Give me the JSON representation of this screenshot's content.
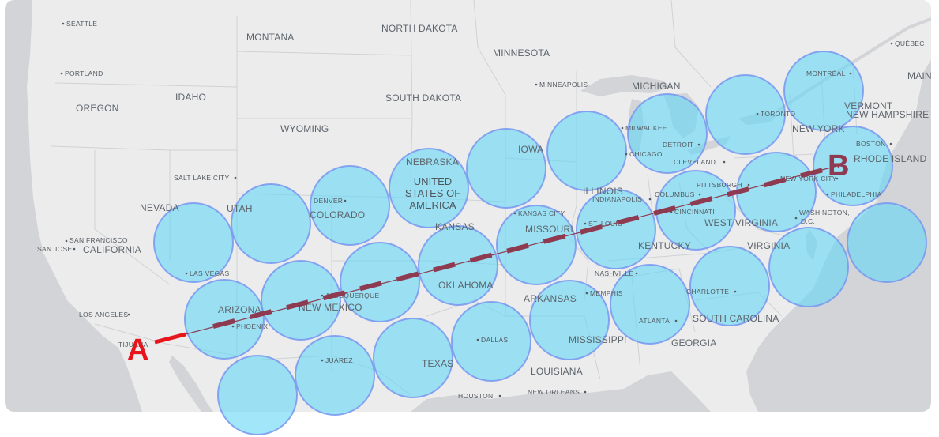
{
  "colors": {
    "background": "#ffffff",
    "land": "#ececec",
    "water": "#d2d4d7",
    "coverage_fill": "#67d7f5",
    "coverage_stroke": "#7896f0",
    "route_start": "#e8141c",
    "route_main": "#8e3a50",
    "label_a": "#e8141c",
    "label_b": "#8e3a50"
  },
  "markers": {
    "start_label": "A",
    "end_label": "B"
  },
  "labels": {
    "country": [
      "UNITED",
      "STATES OF",
      "AMERICA"
    ],
    "states": {
      "montana": "MONTANA",
      "north_dakota": "NORTH DAKOTA",
      "minnesota": "MINNESOTA",
      "south_dakota": "SOUTH DAKOTA",
      "oregon": "OREGON",
      "idaho": "IDAHO",
      "wyoming": "WYOMING",
      "michigan": "MICHIGAN",
      "nebraska": "NEBRASKA",
      "iowa": "IOWA",
      "nevada": "NEVADA",
      "utah": "UTAH",
      "colorado": "COLORADO",
      "kansas": "KANSAS",
      "missouri": "MISSOURI",
      "illinois": "ILLINOIS",
      "california": "CALIFORNIA",
      "arizona": "ARIZONA",
      "new_mexico": "NEW MEXICO",
      "oklahoma": "OKLAHOMA",
      "arkansas": "ARKANSAS",
      "texas": "TEXAS",
      "mississippi": "MISSISSIPPI",
      "louisiana": "LOUISIANA",
      "georgia": "GEORGIA",
      "south_carolina": "SOUTH CAROLINA",
      "kentucky": "KENTUCKY",
      "west_virginia": "WEST VIRGINIA",
      "virginia": "VIRGINIA",
      "new_york": "NEW YORK",
      "vermont": "VERMONT",
      "new_hampshire": "NEW HAMPSHIRE",
      "rhode_island": "RHODE ISLAND",
      "maine_partial": "MAIN"
    },
    "cities": {
      "seattle": "SEATTLE",
      "portland": "PORTLAND",
      "salt_lake_city": "SALT LAKE CITY",
      "san_francisco": "SAN FRANCISCO",
      "san_jose": "SAN JOSE",
      "las_vegas": "LAS VEGAS",
      "los_angeles": "LOS ANGELES",
      "tijuana": "TIJUANA",
      "phoenix": "PHOENIX",
      "denver": "DENVER",
      "albuquerque": "ALBUQUERQUE",
      "juarez": "JUAREZ",
      "dallas": "DALLAS",
      "houston": "HOUSTON",
      "new_orleans": "NEW ORLEANS",
      "kansas_city": "KANSAS CITY",
      "st_louis": "ST. LOUIS",
      "memphis": "MEMPHIS",
      "nashville": "NASHVILLE",
      "atlanta": "ATLANTA",
      "charlotte": "CHARLOTTE",
      "minneapolis": "MINNEAPOLIS",
      "milwaukee": "MILWAUKEE",
      "chicago": "CHICAGO",
      "detroit": "DETROIT",
      "cleveland": "CLEVELAND",
      "indianapolis": "INDIANAPOLIS",
      "columbus": "COLUMBUS",
      "cincinnati": "CINCINNATI",
      "pittsburgh": "PITTSBURGH",
      "toronto": "TORONTO",
      "montreal": "MONTRÉAL",
      "quebec": "QUÉBEC",
      "boston": "BOSTON",
      "new_york_city": "NEW YORK CITY",
      "philadelphia": "PHILADELPHIA",
      "washington": "WASHINGTON,",
      "dc": "D.C."
    }
  }
}
